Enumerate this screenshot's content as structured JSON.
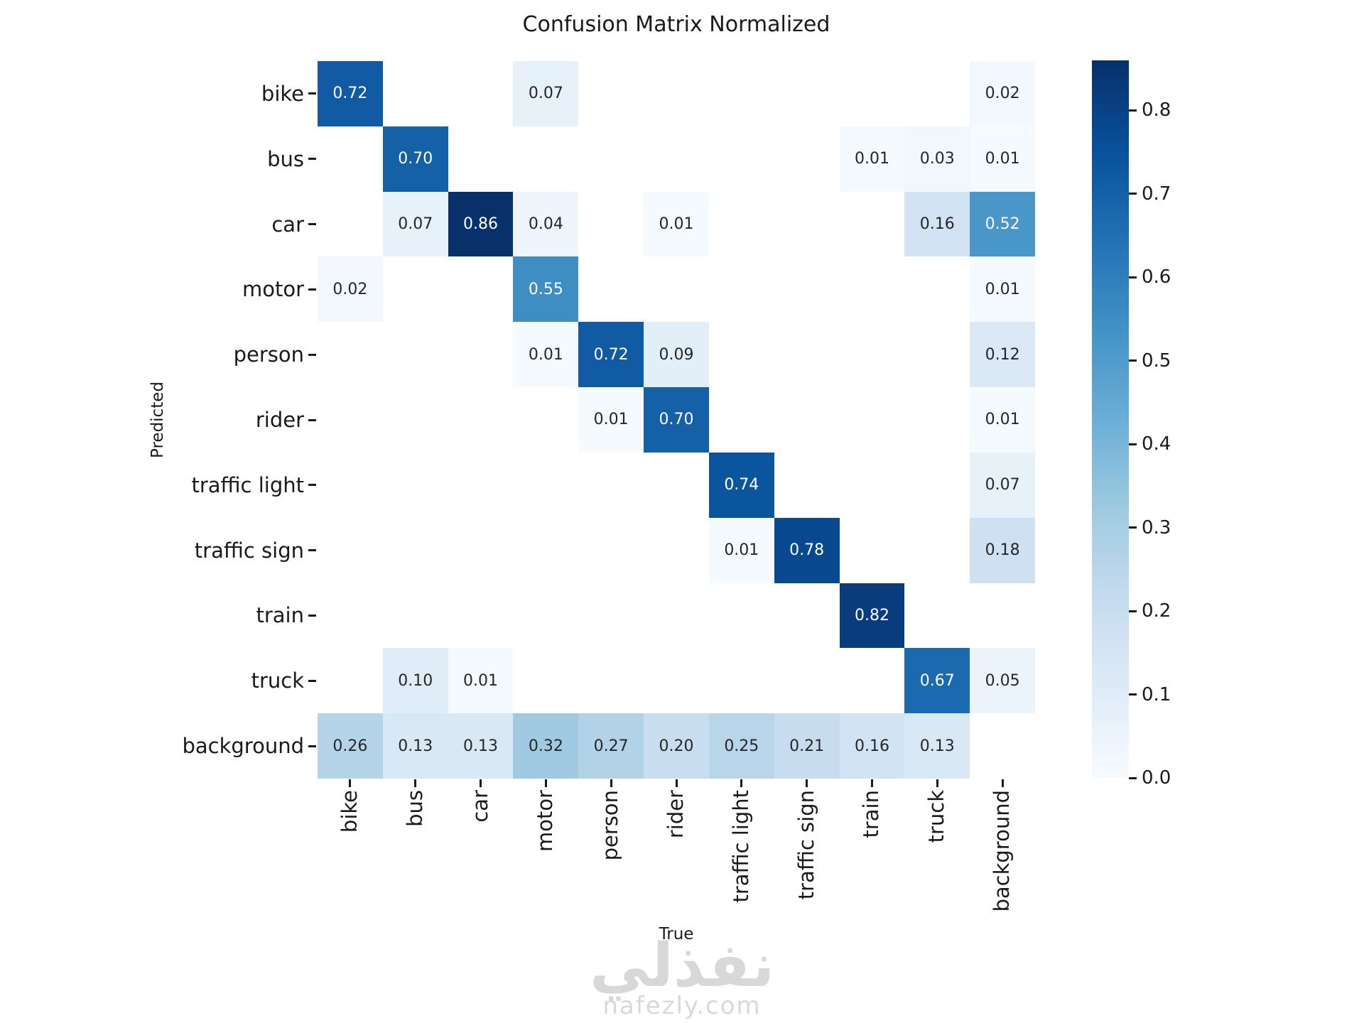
{
  "title": "Confusion Matrix Normalized",
  "axis": {
    "x_label": "True",
    "y_label": "Predicted"
  },
  "watermark": {
    "arabic_text": "نفذلي",
    "site_text": "nafezly.com"
  },
  "chart_data": {
    "type": "heatmap",
    "title": "Confusion Matrix Normalized",
    "xlabel": "True",
    "ylabel": "Predicted",
    "categories": [
      "bike",
      "bus",
      "car",
      "motor",
      "person",
      "rider",
      "traffic light",
      "traffic sign",
      "train",
      "truck",
      "background"
    ],
    "rows_are": "Predicted",
    "cols_are": "True",
    "matrix": [
      [
        0.72,
        null,
        null,
        0.07,
        null,
        null,
        null,
        null,
        null,
        null,
        0.02
      ],
      [
        null,
        0.7,
        null,
        null,
        null,
        null,
        null,
        null,
        0.01,
        0.03,
        0.01
      ],
      [
        null,
        0.07,
        0.86,
        0.04,
        null,
        0.01,
        null,
        null,
        null,
        0.16,
        0.52
      ],
      [
        0.02,
        null,
        null,
        0.55,
        null,
        null,
        null,
        null,
        null,
        null,
        0.01
      ],
      [
        null,
        null,
        null,
        0.01,
        0.72,
        0.09,
        null,
        null,
        null,
        null,
        0.12
      ],
      [
        null,
        null,
        null,
        null,
        0.01,
        0.7,
        null,
        null,
        null,
        null,
        0.01
      ],
      [
        null,
        null,
        null,
        null,
        null,
        null,
        0.74,
        null,
        null,
        null,
        0.07
      ],
      [
        null,
        null,
        null,
        null,
        null,
        null,
        0.01,
        0.78,
        null,
        null,
        0.18
      ],
      [
        null,
        null,
        null,
        null,
        null,
        null,
        null,
        null,
        0.82,
        null,
        null
      ],
      [
        null,
        0.1,
        0.01,
        null,
        null,
        null,
        null,
        null,
        null,
        0.67,
        0.05
      ],
      [
        0.26,
        0.13,
        0.13,
        0.32,
        0.27,
        0.2,
        0.25,
        0.21,
        0.16,
        0.13,
        null
      ]
    ],
    "vmin": 0.0,
    "vmax": 0.86,
    "value_format": ".2f",
    "colormap": "Blues",
    "grid": false,
    "colorbar": {
      "position": "right",
      "ticks": [
        0.8,
        0.7,
        0.6,
        0.5,
        0.4,
        0.3,
        0.2,
        0.1,
        0.0
      ]
    }
  },
  "colors": {
    "colormap_stops": [
      {
        "t": 0.0,
        "hex": "#f7fbff"
      },
      {
        "t": 0.125,
        "hex": "#deebf7"
      },
      {
        "t": 0.25,
        "hex": "#c6dbef"
      },
      {
        "t": 0.375,
        "hex": "#9ecae1"
      },
      {
        "t": 0.5,
        "hex": "#6baed6"
      },
      {
        "t": 0.625,
        "hex": "#4292c6"
      },
      {
        "t": 0.75,
        "hex": "#2171b5"
      },
      {
        "t": 0.875,
        "hex": "#08519c"
      },
      {
        "t": 1.0,
        "hex": "#08306b"
      }
    ],
    "empty_cell": "#ffffff",
    "annotation_dark": "#262626",
    "annotation_light": "#ffffff",
    "tick_text": "#1a1a1a",
    "watermark": "#d8d8d8"
  }
}
